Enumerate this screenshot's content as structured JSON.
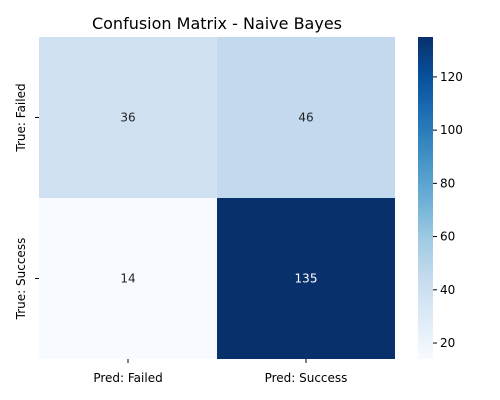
{
  "chart_data": {
    "type": "heatmap",
    "title": "Confusion Matrix - Naive Bayes",
    "x_categories": [
      "Pred: Failed",
      "Pred: Success"
    ],
    "y_categories": [
      "True: Failed",
      "True: Success"
    ],
    "values": [
      [
        36,
        46
      ],
      [
        14,
        135
      ]
    ],
    "colormap": "Blues",
    "colorbar": {
      "min": 14,
      "max": 135,
      "ticks": [
        "20",
        "40",
        "60",
        "80",
        "100",
        "120"
      ]
    },
    "colors": {
      "cells": [
        [
          "#d0e1f2",
          "#c2d9ee"
        ],
        [
          "#f7fbff",
          "#08306b"
        ]
      ],
      "text_light": "#ffffff",
      "text_dark": "#262626"
    }
  }
}
